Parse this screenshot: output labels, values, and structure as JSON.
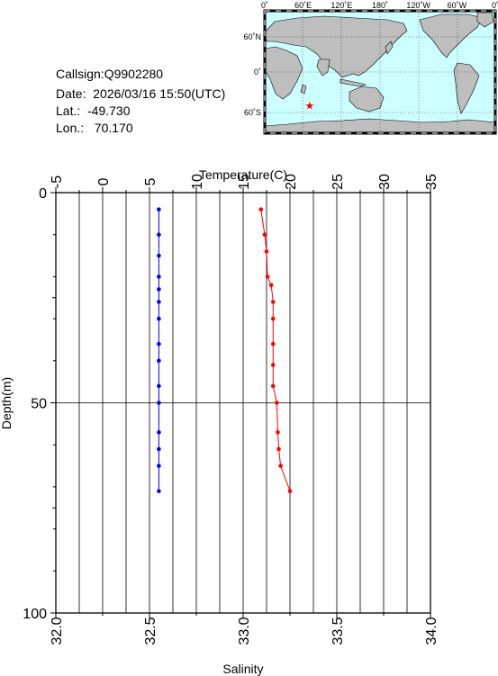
{
  "station": {
    "callsign": "Callsign:Q9902280",
    "date": "Date:  2026/03/16 15:50(UTC)",
    "lat": "Lat.:  -49.730",
    "lon": "Lon.:   70.170"
  },
  "map": {
    "lon_labels": [
      "0˚",
      "60˚E",
      "120˚E",
      "180˚",
      "120˚W",
      "60˚W",
      "0˚"
    ],
    "lat_labels": [
      "60˚N",
      "0˚",
      "60˚S"
    ],
    "marker": {
      "lat": -49.73,
      "lon": 70.17,
      "symbol": "★"
    },
    "colors": {
      "ocean": "#ccffff",
      "land": "#bebebe",
      "marker": "#ff0000"
    }
  },
  "chart_data": {
    "type": "line",
    "ylabel": "Depth(m)",
    "top_xlabel": "Temperature(C)",
    "bottom_xlabel": "Salinity",
    "ylim": [
      100,
      0
    ],
    "temp_lim": [
      -5,
      35
    ],
    "sal_lim": [
      32.0,
      34.0
    ],
    "y_ticks": [
      "0",
      "50",
      "100"
    ],
    "temp_ticks": [
      "-5",
      "0",
      "5",
      "10",
      "15",
      "20",
      "25",
      "30",
      "35"
    ],
    "sal_ticks": [
      "32.0",
      "32.5",
      "33.0",
      "33.5",
      "34.0"
    ],
    "series": [
      {
        "axis": "salinity",
        "color": "#0000ff",
        "depth": [
          4,
          10,
          15,
          20,
          23,
          26,
          30,
          36,
          40,
          46,
          50,
          57,
          61,
          65,
          71
        ],
        "values": [
          32.55,
          32.55,
          32.55,
          32.55,
          32.55,
          32.55,
          32.55,
          32.55,
          32.55,
          32.55,
          32.55,
          32.55,
          32.55,
          32.55,
          32.55
        ]
      },
      {
        "axis": "temperature",
        "color": "#ff0000",
        "depth": [
          4,
          10,
          14,
          20,
          22,
          26,
          30,
          36,
          41,
          46,
          50,
          57,
          61,
          65,
          71
        ],
        "values": [
          16.9,
          17.3,
          17.5,
          17.6,
          18.0,
          18.2,
          18.2,
          18.2,
          18.2,
          18.2,
          18.6,
          18.7,
          18.8,
          19.0,
          20.0
        ]
      }
    ]
  }
}
